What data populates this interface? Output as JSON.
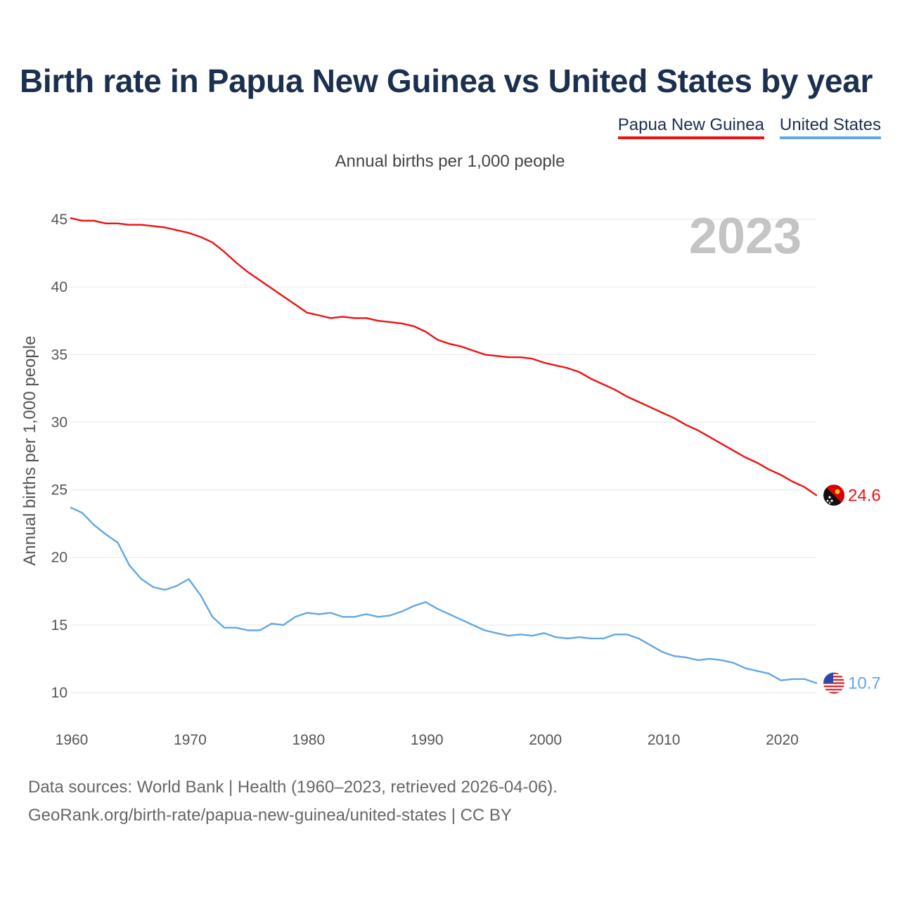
{
  "colors": {
    "series_1": "#ee1111",
    "series_2": "#62a7e6",
    "title": "#1b2f4f",
    "grid": "#e6e6e6",
    "year_watermark": "#c4c4c4"
  },
  "footer": {
    "sources": "Data sources: World Bank | Health (1960–2023, retrieved 2026-04-06).",
    "link": "GeoRank.org/birth-rate/papua-new-guinea/united-states | CC BY"
  },
  "chart_data": {
    "type": "line",
    "title": "Birth rate in Papua New Guinea vs United States by year",
    "subtitle": "Annual births per 1,000 people",
    "ylabel": "Annual births per 1,000 people",
    "xlabel": "",
    "year_label": "2023",
    "xlim": [
      1960,
      2023
    ],
    "ylim": [
      10,
      45
    ],
    "xticks": [
      "1960",
      "1970",
      "1980",
      "1990",
      "2000",
      "2010",
      "2020"
    ],
    "yticks": [
      "10",
      "15",
      "20",
      "25",
      "30",
      "35",
      "40",
      "45"
    ],
    "legend_position": "top-right",
    "grid": true,
    "series": [
      {
        "name": "Papua New Guinea",
        "icon": "papua-new-guinea-flag-icon",
        "end_label": "24.6",
        "x": [
          1960,
          1961,
          1962,
          1963,
          1964,
          1965,
          1966,
          1967,
          1968,
          1969,
          1970,
          1971,
          1972,
          1973,
          1974,
          1975,
          1976,
          1977,
          1978,
          1979,
          1980,
          1981,
          1982,
          1983,
          1984,
          1985,
          1986,
          1987,
          1988,
          1989,
          1990,
          1991,
          1992,
          1993,
          1994,
          1995,
          1996,
          1997,
          1998,
          1999,
          2000,
          2001,
          2002,
          2003,
          2004,
          2005,
          2006,
          2007,
          2008,
          2009,
          2010,
          2011,
          2012,
          2013,
          2014,
          2015,
          2016,
          2017,
          2018,
          2019,
          2020,
          2021,
          2022,
          2023
        ],
        "values": [
          45.1,
          44.9,
          44.9,
          44.7,
          44.7,
          44.6,
          44.6,
          44.5,
          44.4,
          44.2,
          44.0,
          43.7,
          43.3,
          42.6,
          41.8,
          41.1,
          40.5,
          39.9,
          39.3,
          38.7,
          38.1,
          37.9,
          37.7,
          37.8,
          37.7,
          37.7,
          37.5,
          37.4,
          37.3,
          37.1,
          36.7,
          36.1,
          35.8,
          35.6,
          35.3,
          35.0,
          34.9,
          34.8,
          34.8,
          34.7,
          34.4,
          34.2,
          34.0,
          33.7,
          33.2,
          32.8,
          32.4,
          31.9,
          31.5,
          31.1,
          30.7,
          30.3,
          29.8,
          29.4,
          28.9,
          28.4,
          27.9,
          27.4,
          27.0,
          26.5,
          26.1,
          25.6,
          25.2,
          24.6
        ]
      },
      {
        "name": "United States",
        "icon": "united-states-flag-icon",
        "end_label": "10.7",
        "x": [
          1960,
          1961,
          1962,
          1963,
          1964,
          1965,
          1966,
          1967,
          1968,
          1969,
          1970,
          1971,
          1972,
          1973,
          1974,
          1975,
          1976,
          1977,
          1978,
          1979,
          1980,
          1981,
          1982,
          1983,
          1984,
          1985,
          1986,
          1987,
          1988,
          1989,
          1990,
          1991,
          1992,
          1993,
          1994,
          1995,
          1996,
          1997,
          1998,
          1999,
          2000,
          2001,
          2002,
          2003,
          2004,
          2005,
          2006,
          2007,
          2008,
          2009,
          2010,
          2011,
          2012,
          2013,
          2014,
          2015,
          2016,
          2017,
          2018,
          2019,
          2020,
          2021,
          2022,
          2023
        ],
        "values": [
          23.7,
          23.3,
          22.4,
          21.7,
          21.1,
          19.4,
          18.4,
          17.8,
          17.6,
          17.9,
          18.4,
          17.2,
          15.6,
          14.8,
          14.8,
          14.6,
          14.6,
          15.1,
          15.0,
          15.6,
          15.9,
          15.8,
          15.9,
          15.6,
          15.6,
          15.8,
          15.6,
          15.7,
          16.0,
          16.4,
          16.7,
          16.2,
          15.8,
          15.4,
          15.0,
          14.6,
          14.4,
          14.2,
          14.3,
          14.2,
          14.4,
          14.1,
          14.0,
          14.1,
          14.0,
          14.0,
          14.3,
          14.3,
          14.0,
          13.5,
          13.0,
          12.7,
          12.6,
          12.4,
          12.5,
          12.4,
          12.2,
          11.8,
          11.6,
          11.4,
          10.9,
          11.0,
          11.0,
          10.7
        ]
      }
    ]
  }
}
